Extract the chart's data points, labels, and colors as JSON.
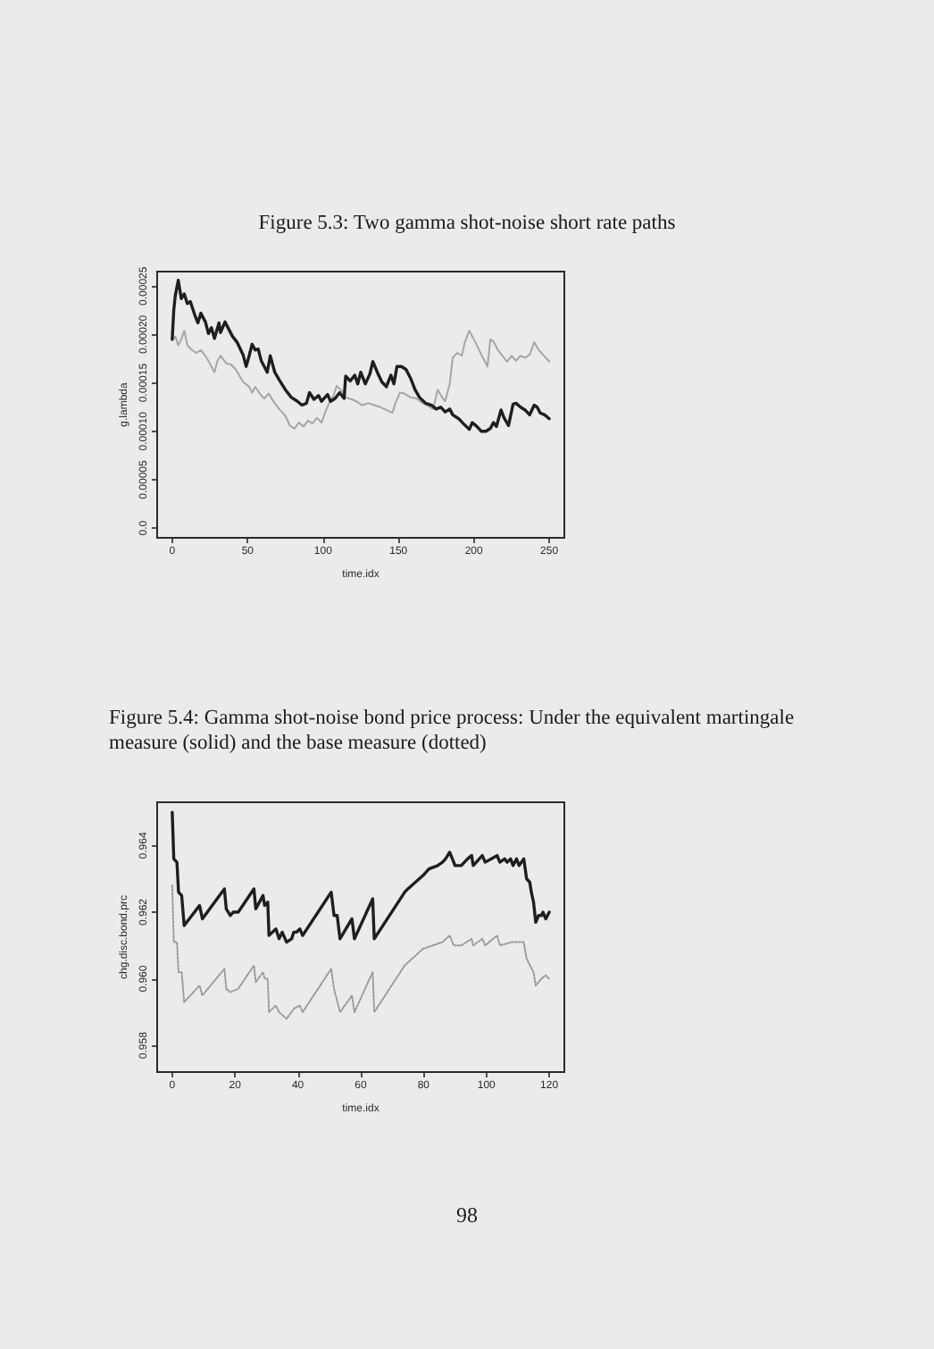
{
  "chart_data": [
    {
      "type": "line",
      "title": "Figure 5.3: Two gamma shot-noise short rate paths",
      "xlabel": "time.idx",
      "ylabel": "g.lambda",
      "xlim": [
        -10,
        260
      ],
      "xticks": [
        0,
        50,
        100,
        150,
        200,
        250
      ],
      "ylim": [
        -1e-05,
        0.000265
      ],
      "yticks": [
        {
          "value": 0,
          "label": "0.0"
        },
        {
          "value": 5e-05,
          "label": "0.00005"
        },
        {
          "value": 0.0001,
          "label": "0.00010"
        },
        {
          "value": 0.00015,
          "label": "0.00015"
        },
        {
          "value": 0.0002,
          "label": "0.00020"
        },
        {
          "value": 0.00025,
          "label": "0.00025"
        }
      ],
      "series": [
        {
          "color": "#1e1e1e",
          "x": [
            0,
            1,
            2,
            4,
            6,
            8,
            10,
            12,
            15,
            17,
            19,
            22,
            24,
            26,
            28,
            31,
            32,
            35,
            37,
            40,
            43,
            47,
            49,
            51,
            53,
            55,
            57,
            59,
            63,
            65,
            68,
            71,
            75,
            79,
            83,
            86,
            89,
            91,
            94,
            97,
            99,
            103,
            105,
            108,
            111,
            114,
            115,
            118,
            121,
            123,
            125,
            128,
            131,
            133,
            136,
            139,
            142,
            145,
            147,
            149,
            152,
            155,
            158,
            161,
            164,
            168,
            172,
            175,
            178,
            181,
            184,
            186,
            190,
            193,
            197,
            199,
            202,
            205,
            208,
            211,
            213,
            215,
            218,
            220,
            223,
            226,
            228,
            231,
            234,
            237,
            240,
            242,
            244,
            247,
            250
          ],
          "values": [
            0.000195,
            0.000225,
            0.00024,
            0.000256,
            0.000237,
            0.000242,
            0.000232,
            0.000234,
            0.00022,
            0.000212,
            0.000222,
            0.000213,
            0.000201,
            0.000207,
            0.000196,
            0.000212,
            0.000202,
            0.000213,
            0.000207,
            0.000198,
            0.000192,
            0.000179,
            0.000167,
            0.000178,
            0.00019,
            0.000184,
            0.000185,
            0.000173,
            0.000161,
            0.000178,
            0.000161,
            0.000153,
            0.000143,
            0.000135,
            0.000131,
            0.000127,
            0.000129,
            0.00014,
            0.000133,
            0.000137,
            0.000131,
            0.000138,
            0.000131,
            0.000134,
            0.00014,
            0.000134,
            0.000157,
            0.000152,
            0.000158,
            0.000149,
            0.000161,
            0.000149,
            0.000159,
            0.000172,
            0.000161,
            0.000151,
            0.000146,
            0.000158,
            0.000149,
            0.000167,
            0.000167,
            0.000164,
            0.000155,
            0.000143,
            0.000135,
            0.000129,
            0.000127,
            0.000123,
            0.000125,
            0.00012,
            0.000123,
            0.000117,
            0.000113,
            0.000108,
            0.000102,
            0.000109,
            0.000105,
            0.0001,
            0.0001,
            0.000103,
            0.000109,
            0.000105,
            0.000122,
            0.000114,
            0.000106,
            0.000128,
            0.000129,
            0.000125,
            0.000122,
            0.000117,
            0.000127,
            0.000125,
            0.000119,
            0.000117,
            0.000113
          ]
        },
        {
          "color": "#a6a6a6",
          "x": [
            0,
            2,
            4,
            6,
            8,
            10,
            13,
            16,
            19,
            22,
            25,
            28,
            30,
            32,
            36,
            39,
            42,
            44,
            47,
            51,
            53,
            55,
            59,
            61,
            64,
            67,
            71,
            75,
            78,
            81,
            84,
            87,
            90,
            93,
            96,
            99,
            102,
            104,
            107,
            109,
            113,
            115,
            119,
            122,
            126,
            130,
            134,
            138,
            142,
            146,
            148,
            151,
            154,
            158,
            162,
            166,
            169,
            173,
            176,
            179,
            181,
            184,
            186,
            189,
            192,
            194,
            197,
            199,
            202,
            205,
            209,
            211,
            213,
            216,
            219,
            222,
            225,
            228,
            231,
            234,
            237,
            240,
            243,
            246,
            250
          ],
          "values": [
            0.000195,
            0.000198,
            0.000189,
            0.000195,
            0.000204,
            0.000189,
            0.000184,
            0.000181,
            0.000184,
            0.000178,
            0.00017,
            0.000161,
            0.000173,
            0.000178,
            0.00017,
            0.000169,
            0.000164,
            0.000159,
            0.000151,
            0.000146,
            0.00014,
            0.000146,
            0.000137,
            0.000134,
            0.000139,
            0.000131,
            0.000123,
            0.000116,
            0.000106,
            0.000103,
            0.000109,
            0.000105,
            0.000111,
            0.000108,
            0.000114,
            0.000109,
            0.000122,
            0.000129,
            0.000137,
            0.000147,
            0.000141,
            0.000135,
            0.000133,
            0.000131,
            0.000127,
            0.000129,
            0.000127,
            0.000125,
            0.000122,
            0.000119,
            0.000129,
            0.00014,
            0.000139,
            0.000135,
            0.000134,
            0.000129,
            0.000127,
            0.000123,
            0.000143,
            0.000135,
            0.000131,
            0.000149,
            0.000176,
            0.000181,
            0.000178,
            0.000192,
            0.000204,
            0.000198,
            0.000189,
            0.000179,
            0.000167,
            0.000195,
            0.000193,
            0.000184,
            0.000178,
            0.000172,
            0.000178,
            0.000173,
            0.000178,
            0.000176,
            0.000179,
            0.000192,
            0.000184,
            0.000179,
            0.000172
          ]
        }
      ]
    },
    {
      "type": "line",
      "title": "Figure 5.4: Gamma shot-noise bond price process: Under the equivalent martingale measure (solid) and the base measure (dotted)",
      "xlabel": "time.idx",
      "ylabel": "chg.disc.bond.prc",
      "xlim": [
        -4.8,
        124.8
      ],
      "xticks": [
        0,
        20,
        40,
        60,
        80,
        100,
        120
      ],
      "ylim": [
        0.9572,
        0.9653
      ],
      "yticks": [
        0.958,
        {
          "value": 0.96,
          "label": "0.960"
        },
        0.962,
        0.964
      ],
      "series": [
        {
          "color": "#1e1e1e",
          "x": [
            0,
            0.5,
            1.5,
            2,
            3,
            3.8,
            8.7,
            9.6,
            16.6,
            17.2,
            18.5,
            19.4,
            21,
            26,
            26.6,
            28.9,
            29.4,
            30.4,
            30.8,
            33,
            34,
            35,
            36.4,
            38,
            38.7,
            39.6,
            40.6,
            41.5,
            50.6,
            51.5,
            52.5,
            53.4,
            57.2,
            58,
            63.8,
            64.3,
            74,
            75,
            79.8,
            81.7,
            84.5,
            86,
            87,
            88.3,
            89.6,
            90,
            92,
            94,
            95.3,
            95.8,
            98.7,
            99.6,
            103.4,
            104.3,
            105.8,
            106.6,
            107.7,
            108.5,
            109.6,
            110.4,
            111.9,
            112.8,
            113.8,
            114.3,
            115,
            115.7,
            116.6,
            117.5,
            118,
            118.9,
            120
          ],
          "values": [
            0.965,
            0.9636,
            0.9635,
            0.9626,
            0.9625,
            0.9616,
            0.9622,
            0.9618,
            0.9627,
            0.9621,
            0.9619,
            0.962,
            0.962,
            0.9627,
            0.9621,
            0.9625,
            0.9622,
            0.9623,
            0.9613,
            0.9615,
            0.9612,
            0.9614,
            0.9611,
            0.9612,
            0.9614,
            0.9614,
            0.9615,
            0.9613,
            0.9626,
            0.9619,
            0.9619,
            0.9612,
            0.9618,
            0.9612,
            0.9624,
            0.9612,
            0.9626,
            0.9627,
            0.9631,
            0.9633,
            0.9634,
            0.9635,
            0.9636,
            0.9638,
            0.9635,
            0.9634,
            0.9634,
            0.9636,
            0.9637,
            0.9634,
            0.9637,
            0.9635,
            0.9637,
            0.9635,
            0.9636,
            0.9635,
            0.9636,
            0.9634,
            0.9636,
            0.9634,
            0.9636,
            0.963,
            0.9629,
            0.9626,
            0.9623,
            0.9617,
            0.9619,
            0.9619,
            0.962,
            0.9618,
            0.962
          ]
        },
        {
          "color": "#9a9a9a",
          "line_style": "dotted",
          "x": [
            0,
            0.5,
            1.5,
            2,
            3,
            3.8,
            8.7,
            9.6,
            16.6,
            17.2,
            18.5,
            21,
            26,
            26.6,
            28.9,
            29.4,
            30.4,
            30.8,
            33,
            34,
            36.4,
            38.7,
            40.6,
            41.5,
            50.6,
            51.5,
            53.4,
            57.2,
            58,
            63.8,
            64.3,
            74,
            79.8,
            86,
            88.3,
            89.6,
            92,
            95.3,
            95.8,
            98.7,
            99.6,
            103.4,
            104.3,
            108,
            111.9,
            112.8,
            115,
            115.7,
            117.5,
            118.9,
            120
          ],
          "values": [
            0.9628,
            0.9611,
            0.9611,
            0.9602,
            0.9602,
            0.9593,
            0.9598,
            0.9595,
            0.9603,
            0.9597,
            0.9596,
            0.9597,
            0.9604,
            0.9599,
            0.9602,
            0.96,
            0.96,
            0.959,
            0.9592,
            0.959,
            0.9588,
            0.9591,
            0.9592,
            0.959,
            0.9603,
            0.9597,
            0.959,
            0.9595,
            0.959,
            0.9602,
            0.959,
            0.9604,
            0.9609,
            0.9611,
            0.9613,
            0.961,
            0.961,
            0.9612,
            0.961,
            0.9612,
            0.961,
            0.9613,
            0.961,
            0.9611,
            0.9611,
            0.9606,
            0.9602,
            0.9598,
            0.96,
            0.9601,
            0.96
          ]
        }
      ],
      "annotations": [
        "98"
      ]
    }
  ]
}
